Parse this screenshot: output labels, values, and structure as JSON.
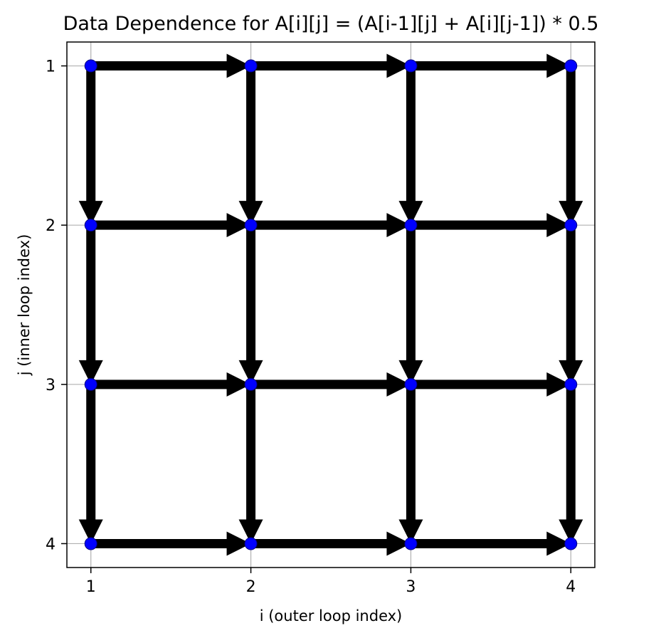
{
  "chart_data": {
    "type": "scatter",
    "title": "Data Dependence for A[i][j] = (A[i-1][j] + A[i][j-1]) * 0.5",
    "xlabel": "i (outer loop index)",
    "ylabel": "j (inner loop index)",
    "x_ticks": [
      "1",
      "2",
      "3",
      "4"
    ],
    "y_ticks": [
      "1",
      "2",
      "3",
      "4"
    ],
    "xlim": [
      0.85,
      4.15
    ],
    "ylim": [
      4.15,
      0.85
    ],
    "y_inverted": true,
    "grid": true,
    "points": [
      {
        "i": 1,
        "j": 1
      },
      {
        "i": 2,
        "j": 1
      },
      {
        "i": 3,
        "j": 1
      },
      {
        "i": 4,
        "j": 1
      },
      {
        "i": 1,
        "j": 2
      },
      {
        "i": 2,
        "j": 2
      },
      {
        "i": 3,
        "j": 2
      },
      {
        "i": 4,
        "j": 2
      },
      {
        "i": 1,
        "j": 3
      },
      {
        "i": 2,
        "j": 3
      },
      {
        "i": 3,
        "j": 3
      },
      {
        "i": 4,
        "j": 3
      },
      {
        "i": 1,
        "j": 4
      },
      {
        "i": 2,
        "j": 4
      },
      {
        "i": 3,
        "j": 4
      },
      {
        "i": 4,
        "j": 4
      }
    ],
    "dependence_arrows": [
      {
        "from": [
          1,
          1
        ],
        "to": [
          2,
          1
        ]
      },
      {
        "from": [
          2,
          1
        ],
        "to": [
          3,
          1
        ]
      },
      {
        "from": [
          3,
          1
        ],
        "to": [
          4,
          1
        ]
      },
      {
        "from": [
          1,
          2
        ],
        "to": [
          2,
          2
        ]
      },
      {
        "from": [
          2,
          2
        ],
        "to": [
          3,
          2
        ]
      },
      {
        "from": [
          3,
          2
        ],
        "to": [
          4,
          2
        ]
      },
      {
        "from": [
          1,
          3
        ],
        "to": [
          2,
          3
        ]
      },
      {
        "from": [
          2,
          3
        ],
        "to": [
          3,
          3
        ]
      },
      {
        "from": [
          3,
          3
        ],
        "to": [
          4,
          3
        ]
      },
      {
        "from": [
          1,
          4
        ],
        "to": [
          2,
          4
        ]
      },
      {
        "from": [
          2,
          4
        ],
        "to": [
          3,
          4
        ]
      },
      {
        "from": [
          3,
          4
        ],
        "to": [
          4,
          4
        ]
      },
      {
        "from": [
          1,
          1
        ],
        "to": [
          1,
          2
        ]
      },
      {
        "from": [
          1,
          2
        ],
        "to": [
          1,
          3
        ]
      },
      {
        "from": [
          1,
          3
        ],
        "to": [
          1,
          4
        ]
      },
      {
        "from": [
          2,
          1
        ],
        "to": [
          2,
          2
        ]
      },
      {
        "from": [
          2,
          2
        ],
        "to": [
          2,
          3
        ]
      },
      {
        "from": [
          2,
          3
        ],
        "to": [
          2,
          4
        ]
      },
      {
        "from": [
          3,
          1
        ],
        "to": [
          3,
          2
        ]
      },
      {
        "from": [
          3,
          2
        ],
        "to": [
          3,
          3
        ]
      },
      {
        "from": [
          3,
          3
        ],
        "to": [
          3,
          4
        ]
      },
      {
        "from": [
          4,
          1
        ],
        "to": [
          4,
          2
        ]
      },
      {
        "from": [
          4,
          2
        ],
        "to": [
          4,
          3
        ]
      },
      {
        "from": [
          4,
          3
        ],
        "to": [
          4,
          4
        ]
      }
    ],
    "colors": {
      "point_fill": "#0000ff",
      "point_edge": "#000080",
      "arrow": "#000000",
      "grid": "#b0b0b0",
      "axes": "#000000"
    }
  }
}
